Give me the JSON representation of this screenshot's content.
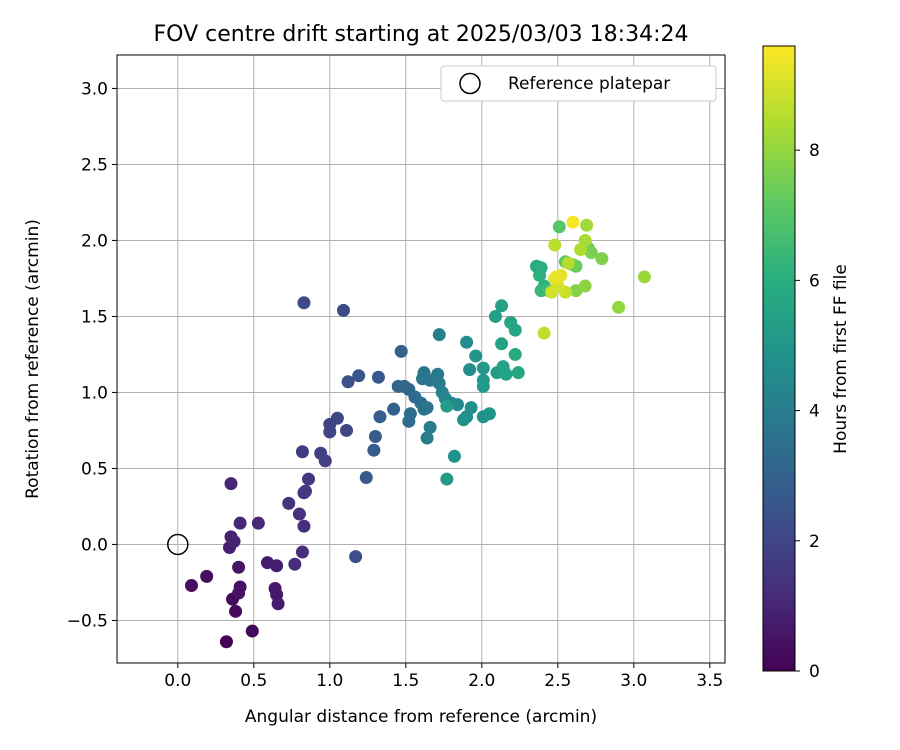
{
  "chart_data": {
    "type": "scatter",
    "title": "FOV centre drift starting at 2025/03/03 18:34:24",
    "xlabel": "Angular distance from reference (arcmin)",
    "ylabel": "Rotation from reference (arcmin)",
    "xlim": [
      -0.4,
      3.6
    ],
    "ylim": [
      -0.78,
      3.22
    ],
    "xticks": [
      0.0,
      0.5,
      1.0,
      1.5,
      2.0,
      2.5,
      3.0,
      3.5
    ],
    "xtick_labels": [
      "0.0",
      "0.5",
      "1.0",
      "1.5",
      "2.0",
      "2.5",
      "3.0",
      "3.5"
    ],
    "yticks": [
      -0.5,
      0.0,
      0.5,
      1.0,
      1.5,
      2.0,
      2.5,
      3.0
    ],
    "ytick_labels": [
      "−0.5",
      "0.0",
      "0.5",
      "1.0",
      "1.5",
      "2.0",
      "2.5",
      "3.0"
    ],
    "grid": true,
    "legend": {
      "placement": "top-right",
      "entries": [
        "Reference platepar"
      ]
    },
    "reference_point": {
      "x": 0.0,
      "y": 0.0,
      "label": "Reference platepar",
      "marker": "open-circle"
    },
    "colorbar": {
      "label": "Hours from first FF file",
      "colormap": "viridis",
      "range": [
        0,
        9.6
      ],
      "ticks": [
        0,
        2,
        4,
        6,
        8
      ],
      "tick_labels": [
        "0",
        "2",
        "4",
        "6",
        "8"
      ]
    },
    "points": [
      {
        "x": 0.32,
        "y": -0.64,
        "c": 0.05
      },
      {
        "x": 0.49,
        "y": -0.57,
        "c": 0.15
      },
      {
        "x": 0.38,
        "y": -0.44,
        "c": 0.2
      },
      {
        "x": 0.36,
        "y": -0.36,
        "c": 0.25
      },
      {
        "x": 0.09,
        "y": -0.27,
        "c": 0.35
      },
      {
        "x": 0.19,
        "y": -0.21,
        "c": 0.4
      },
      {
        "x": 0.41,
        "y": -0.28,
        "c": 0.45
      },
      {
        "x": 0.4,
        "y": -0.32,
        "c": 0.5
      },
      {
        "x": 0.4,
        "y": -0.15,
        "c": 0.55
      },
      {
        "x": 0.64,
        "y": -0.29,
        "c": 0.6
      },
      {
        "x": 0.65,
        "y": -0.33,
        "c": 0.65
      },
      {
        "x": 0.66,
        "y": -0.39,
        "c": 0.7
      },
      {
        "x": 0.59,
        "y": -0.12,
        "c": 0.75
      },
      {
        "x": 0.65,
        "y": -0.14,
        "c": 0.8
      },
      {
        "x": 0.34,
        "y": -0.02,
        "c": 0.85
      },
      {
        "x": 0.35,
        "y": 0.05,
        "c": 0.9
      },
      {
        "x": 0.37,
        "y": 0.02,
        "c": 0.95
      },
      {
        "x": 0.35,
        "y": 0.4,
        "c": 1.0
      },
      {
        "x": 0.41,
        "y": 0.14,
        "c": 1.05
      },
      {
        "x": 0.53,
        "y": 0.14,
        "c": 1.1
      },
      {
        "x": 0.77,
        "y": -0.13,
        "c": 1.2
      },
      {
        "x": 0.82,
        "y": -0.05,
        "c": 1.25
      },
      {
        "x": 0.83,
        "y": 0.12,
        "c": 1.3
      },
      {
        "x": 0.8,
        "y": 0.2,
        "c": 1.35
      },
      {
        "x": 0.73,
        "y": 0.27,
        "c": 1.4
      },
      {
        "x": 0.83,
        "y": 0.34,
        "c": 1.5
      },
      {
        "x": 0.84,
        "y": 0.35,
        "c": 1.55
      },
      {
        "x": 0.86,
        "y": 0.43,
        "c": 1.6
      },
      {
        "x": 0.82,
        "y": 0.61,
        "c": 1.7
      },
      {
        "x": 0.94,
        "y": 0.6,
        "c": 1.8
      },
      {
        "x": 0.97,
        "y": 0.55,
        "c": 1.85
      },
      {
        "x": 1.0,
        "y": 0.74,
        "c": 1.9
      },
      {
        "x": 1.0,
        "y": 0.79,
        "c": 1.95
      },
      {
        "x": 1.05,
        "y": 0.83,
        "c": 2.0
      },
      {
        "x": 1.11,
        "y": 0.75,
        "c": 2.05
      },
      {
        "x": 0.83,
        "y": 1.59,
        "c": 2.1
      },
      {
        "x": 1.09,
        "y": 1.54,
        "c": 2.2
      },
      {
        "x": 1.17,
        "y": -0.08,
        "c": 2.3
      },
      {
        "x": 1.12,
        "y": 1.07,
        "c": 2.4
      },
      {
        "x": 1.19,
        "y": 1.11,
        "c": 2.5
      },
      {
        "x": 1.32,
        "y": 1.1,
        "c": 2.6
      },
      {
        "x": 1.24,
        "y": 0.44,
        "c": 2.65
      },
      {
        "x": 1.29,
        "y": 0.62,
        "c": 2.7
      },
      {
        "x": 1.3,
        "y": 0.71,
        "c": 2.8
      },
      {
        "x": 1.33,
        "y": 0.84,
        "c": 2.85
      },
      {
        "x": 1.42,
        "y": 0.89,
        "c": 2.95
      },
      {
        "x": 1.47,
        "y": 1.27,
        "c": 3.0
      },
      {
        "x": 1.45,
        "y": 1.04,
        "c": 3.1
      },
      {
        "x": 1.49,
        "y": 1.04,
        "c": 3.15
      },
      {
        "x": 1.52,
        "y": 1.02,
        "c": 3.2
      },
      {
        "x": 1.56,
        "y": 0.97,
        "c": 3.3
      },
      {
        "x": 1.52,
        "y": 0.81,
        "c": 3.4
      },
      {
        "x": 1.53,
        "y": 0.86,
        "c": 3.45
      },
      {
        "x": 1.6,
        "y": 0.93,
        "c": 3.5
      },
      {
        "x": 1.62,
        "y": 0.89,
        "c": 3.6
      },
      {
        "x": 1.64,
        "y": 0.9,
        "c": 3.65
      },
      {
        "x": 1.61,
        "y": 1.09,
        "c": 3.7
      },
      {
        "x": 1.62,
        "y": 1.13,
        "c": 3.75
      },
      {
        "x": 1.66,
        "y": 1.08,
        "c": 3.8
      },
      {
        "x": 1.71,
        "y": 1.12,
        "c": 3.9
      },
      {
        "x": 1.72,
        "y": 1.06,
        "c": 3.95
      },
      {
        "x": 1.66,
        "y": 0.77,
        "c": 4.0
      },
      {
        "x": 1.64,
        "y": 0.7,
        "c": 4.05
      },
      {
        "x": 1.72,
        "y": 1.38,
        "c": 4.1
      },
      {
        "x": 1.74,
        "y": 1.0,
        "c": 4.2
      },
      {
        "x": 1.76,
        "y": 0.96,
        "c": 4.3
      },
      {
        "x": 1.8,
        "y": 0.93,
        "c": 4.4
      },
      {
        "x": 1.84,
        "y": 0.92,
        "c": 4.5
      },
      {
        "x": 1.9,
        "y": 0.84,
        "c": 4.6
      },
      {
        "x": 1.9,
        "y": 1.33,
        "c": 4.65
      },
      {
        "x": 1.92,
        "y": 1.15,
        "c": 4.7
      },
      {
        "x": 1.93,
        "y": 0.9,
        "c": 4.75
      },
      {
        "x": 1.88,
        "y": 0.82,
        "c": 4.8
      },
      {
        "x": 1.82,
        "y": 0.58,
        "c": 4.85
      },
      {
        "x": 2.01,
        "y": 0.84,
        "c": 4.9
      },
      {
        "x": 2.05,
        "y": 0.86,
        "c": 4.95
      },
      {
        "x": 1.96,
        "y": 1.24,
        "c": 5.0
      },
      {
        "x": 2.01,
        "y": 1.16,
        "c": 5.05
      },
      {
        "x": 2.01,
        "y": 1.08,
        "c": 5.1
      },
      {
        "x": 2.01,
        "y": 1.04,
        "c": 5.15
      },
      {
        "x": 1.77,
        "y": 0.43,
        "c": 5.2
      },
      {
        "x": 1.77,
        "y": 0.91,
        "c": 5.25
      },
      {
        "x": 2.1,
        "y": 1.13,
        "c": 5.3
      },
      {
        "x": 2.09,
        "y": 1.5,
        "c": 5.35
      },
      {
        "x": 2.13,
        "y": 1.57,
        "c": 5.4
      },
      {
        "x": 2.13,
        "y": 1.32,
        "c": 5.45
      },
      {
        "x": 2.14,
        "y": 1.17,
        "c": 5.5
      },
      {
        "x": 2.16,
        "y": 1.12,
        "c": 5.55
      },
      {
        "x": 2.19,
        "y": 1.46,
        "c": 5.6
      },
      {
        "x": 2.22,
        "y": 1.41,
        "c": 5.65
      },
      {
        "x": 2.24,
        "y": 1.13,
        "c": 5.7
      },
      {
        "x": 2.22,
        "y": 1.25,
        "c": 5.8
      },
      {
        "x": 2.36,
        "y": 1.83,
        "c": 5.9
      },
      {
        "x": 2.39,
        "y": 1.82,
        "c": 6.0
      },
      {
        "x": 2.38,
        "y": 1.77,
        "c": 6.1
      },
      {
        "x": 2.41,
        "y": 1.7,
        "c": 6.2
      },
      {
        "x": 2.39,
        "y": 1.67,
        "c": 6.4
      },
      {
        "x": 2.44,
        "y": 1.67,
        "c": 6.6
      },
      {
        "x": 2.51,
        "y": 2.09,
        "c": 7.0
      },
      {
        "x": 2.55,
        "y": 1.86,
        "c": 7.2
      },
      {
        "x": 2.62,
        "y": 1.83,
        "c": 7.3
      },
      {
        "x": 2.6,
        "y": 1.84,
        "c": 7.4
      },
      {
        "x": 2.7,
        "y": 1.95,
        "c": 7.5
      },
      {
        "x": 2.72,
        "y": 1.92,
        "c": 7.6
      },
      {
        "x": 2.79,
        "y": 1.88,
        "c": 7.7
      },
      {
        "x": 2.62,
        "y": 1.67,
        "c": 7.8
      },
      {
        "x": 2.68,
        "y": 1.7,
        "c": 7.9
      },
      {
        "x": 2.9,
        "y": 1.56,
        "c": 8.0
      },
      {
        "x": 3.07,
        "y": 1.76,
        "c": 8.1
      },
      {
        "x": 2.69,
        "y": 2.1,
        "c": 8.2
      },
      {
        "x": 2.68,
        "y": 2.0,
        "c": 8.3
      },
      {
        "x": 2.65,
        "y": 1.94,
        "c": 8.4
      },
      {
        "x": 2.57,
        "y": 1.85,
        "c": 8.5
      },
      {
        "x": 2.48,
        "y": 1.97,
        "c": 8.6
      },
      {
        "x": 2.41,
        "y": 1.39,
        "c": 8.7
      },
      {
        "x": 2.55,
        "y": 1.66,
        "c": 8.8
      },
      {
        "x": 2.46,
        "y": 1.66,
        "c": 8.9
      },
      {
        "x": 2.5,
        "y": 1.7,
        "c": 9.0
      },
      {
        "x": 2.48,
        "y": 1.75,
        "c": 9.1
      },
      {
        "x": 2.52,
        "y": 1.77,
        "c": 9.2
      },
      {
        "x": 2.49,
        "y": 1.76,
        "c": 9.3
      },
      {
        "x": 2.6,
        "y": 2.12,
        "c": 9.5
      }
    ]
  }
}
